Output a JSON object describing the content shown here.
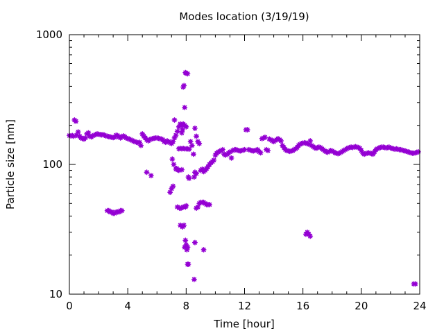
{
  "chart_data": {
    "type": "scatter",
    "title": "Modes location (3/19/19)",
    "xlabel": "Time [hour]",
    "ylabel": "Particle size [nm]",
    "xlim": [
      0,
      24
    ],
    "ylim": [
      10,
      1000
    ],
    "y_scale": "log",
    "x_ticks": [
      0,
      4,
      8,
      12,
      16,
      20,
      24
    ],
    "x_tick_labels": [
      "0",
      "4",
      "8",
      "12",
      "16",
      "20",
      "24"
    ],
    "y_ticks": [
      10,
      100,
      1000
    ],
    "y_tick_labels": [
      "10",
      "100",
      "1000"
    ],
    "grid": false,
    "legend": "none",
    "marker_color": "#9400d3",
    "series": [
      {
        "points": [
          [
            0.0,
            167
          ],
          [
            0.1,
            166
          ],
          [
            0.2,
            167
          ],
          [
            0.3,
            165
          ],
          [
            0.35,
            220
          ],
          [
            0.45,
            215
          ],
          [
            0.5,
            168
          ],
          [
            0.6,
            178
          ],
          [
            0.7,
            165
          ],
          [
            0.8,
            160
          ],
          [
            0.9,
            158
          ],
          [
            1.0,
            157
          ],
          [
            1.1,
            160
          ],
          [
            1.2,
            172
          ],
          [
            1.3,
            175
          ],
          [
            1.4,
            165
          ],
          [
            1.5,
            163
          ],
          [
            1.6,
            166
          ],
          [
            1.7,
            168
          ],
          [
            1.8,
            170
          ],
          [
            1.9,
            172
          ],
          [
            2.0,
            171
          ],
          [
            2.1,
            170
          ],
          [
            2.2,
            169
          ],
          [
            2.3,
            170
          ],
          [
            2.4,
            168
          ],
          [
            2.5,
            166
          ],
          [
            2.6,
            165
          ],
          [
            2.7,
            164
          ],
          [
            2.8,
            163
          ],
          [
            2.9,
            162
          ],
          [
            3.0,
            161
          ],
          [
            3.1,
            162
          ],
          [
            3.2,
            168
          ],
          [
            3.3,
            167
          ],
          [
            3.4,
            163
          ],
          [
            3.5,
            160
          ],
          [
            3.6,
            164
          ],
          [
            3.7,
            166
          ],
          [
            3.8,
            163
          ],
          [
            3.9,
            160
          ],
          [
            4.0,
            158
          ],
          [
            4.1,
            157
          ],
          [
            4.2,
            155
          ],
          [
            4.3,
            153
          ],
          [
            4.4,
            151
          ],
          [
            4.5,
            150
          ],
          [
            4.6,
            148
          ],
          [
            4.7,
            147
          ],
          [
            4.8,
            148
          ],
          [
            4.9,
            140
          ],
          [
            5.0,
            172
          ],
          [
            5.1,
            165
          ],
          [
            5.2,
            160
          ],
          [
            5.3,
            155
          ],
          [
            5.4,
            152
          ],
          [
            5.5,
            155
          ],
          [
            5.6,
            157
          ],
          [
            5.7,
            158
          ],
          [
            5.8,
            159
          ],
          [
            5.9,
            160
          ],
          [
            6.0,
            160
          ],
          [
            6.1,
            159
          ],
          [
            6.2,
            158
          ],
          [
            6.3,
            157
          ],
          [
            6.4,
            155
          ],
          [
            6.5,
            150
          ],
          [
            6.6,
            148
          ],
          [
            6.7,
            152
          ],
          [
            6.8,
            150
          ],
          [
            6.9,
            147
          ],
          [
            7.0,
            145
          ],
          [
            7.1,
            150
          ],
          [
            7.2,
            160
          ],
          [
            7.3,
            168
          ],
          [
            7.4,
            180
          ],
          [
            7.5,
            195
          ],
          [
            7.6,
            205
          ],
          [
            7.7,
            200
          ],
          [
            7.8,
            205
          ],
          [
            7.9,
            200
          ],
          [
            8.0,
            195
          ],
          [
            8.3,
            150
          ],
          [
            8.4,
            140
          ],
          [
            8.5,
            120
          ],
          [
            8.6,
            190
          ],
          [
            8.7,
            165
          ],
          [
            8.8,
            150
          ],
          [
            8.9,
            145
          ],
          [
            9.0,
            90
          ],
          [
            9.1,
            92
          ],
          [
            9.2,
            88
          ],
          [
            9.3,
            90
          ],
          [
            9.4,
            93
          ],
          [
            9.5,
            96
          ],
          [
            9.6,
            100
          ],
          [
            9.7,
            103
          ],
          [
            9.8,
            105
          ],
          [
            9.9,
            108
          ],
          [
            10.0,
            118
          ],
          [
            10.1,
            122
          ],
          [
            10.2,
            125
          ],
          [
            10.3,
            126
          ],
          [
            10.4,
            128
          ],
          [
            10.5,
            130
          ],
          [
            10.6,
            120
          ],
          [
            10.7,
            118
          ],
          [
            10.8,
            120
          ],
          [
            10.9,
            122
          ],
          [
            11.0,
            125
          ],
          [
            11.1,
            112
          ],
          [
            11.2,
            128
          ],
          [
            11.3,
            130
          ],
          [
            11.4,
            130
          ],
          [
            11.5,
            129
          ],
          [
            11.6,
            128
          ],
          [
            11.7,
            127
          ],
          [
            11.8,
            128
          ],
          [
            11.9,
            129
          ],
          [
            12.0,
            130
          ],
          [
            12.1,
            185
          ],
          [
            12.2,
            185
          ],
          [
            12.3,
            130
          ],
          [
            12.4,
            129
          ],
          [
            12.5,
            128
          ],
          [
            12.6,
            127
          ],
          [
            12.7,
            128
          ],
          [
            12.8,
            129
          ],
          [
            12.9,
            130
          ],
          [
            13.0,
            125
          ],
          [
            13.1,
            123
          ],
          [
            13.2,
            158
          ],
          [
            13.3,
            160
          ],
          [
            13.4,
            162
          ],
          [
            13.5,
            130
          ],
          [
            13.6,
            128
          ],
          [
            13.7,
            157
          ],
          [
            13.8,
            155
          ],
          [
            13.9,
            152
          ],
          [
            14.0,
            150
          ],
          [
            14.1,
            153
          ],
          [
            14.2,
            155
          ],
          [
            14.3,
            158
          ],
          [
            14.4,
            155
          ],
          [
            14.5,
            152
          ],
          [
            14.6,
            140
          ],
          [
            14.7,
            135
          ],
          [
            14.8,
            130
          ],
          [
            14.9,
            128
          ],
          [
            15.0,
            127
          ],
          [
            15.1,
            126
          ],
          [
            15.2,
            127
          ],
          [
            15.3,
            128
          ],
          [
            15.4,
            130
          ],
          [
            15.5,
            132
          ],
          [
            15.6,
            135
          ],
          [
            15.7,
            140
          ],
          [
            15.8,
            143
          ],
          [
            15.9,
            145
          ],
          [
            16.0,
            146
          ],
          [
            16.1,
            147
          ],
          [
            16.2,
            146
          ],
          [
            16.3,
            145
          ],
          [
            16.4,
            143
          ],
          [
            16.5,
            152
          ],
          [
            16.6,
            140
          ],
          [
            16.7,
            137
          ],
          [
            16.8,
            135
          ],
          [
            16.9,
            133
          ],
          [
            17.0,
            135
          ],
          [
            17.1,
            136
          ],
          [
            17.2,
            135
          ],
          [
            17.3,
            132
          ],
          [
            17.4,
            130
          ],
          [
            17.5,
            127
          ],
          [
            17.6,
            125
          ],
          [
            17.7,
            124
          ],
          [
            17.8,
            126
          ],
          [
            17.9,
            128
          ],
          [
            18.0,
            127
          ],
          [
            18.1,
            125
          ],
          [
            18.2,
            123
          ],
          [
            18.3,
            122
          ],
          [
            18.4,
            121
          ],
          [
            18.5,
            122
          ],
          [
            18.6,
            124
          ],
          [
            18.7,
            126
          ],
          [
            18.8,
            128
          ],
          [
            18.9,
            130
          ],
          [
            19.0,
            132
          ],
          [
            19.1,
            134
          ],
          [
            19.2,
            135
          ],
          [
            19.3,
            136
          ],
          [
            19.4,
            135
          ],
          [
            19.5,
            136
          ],
          [
            19.6,
            137
          ],
          [
            19.7,
            136
          ],
          [
            19.8,
            135
          ],
          [
            19.9,
            133
          ],
          [
            20.0,
            128
          ],
          [
            20.1,
            122
          ],
          [
            20.2,
            120
          ],
          [
            20.3,
            121
          ],
          [
            20.4,
            122
          ],
          [
            20.5,
            123
          ],
          [
            20.6,
            122
          ],
          [
            20.7,
            121
          ],
          [
            20.8,
            120
          ],
          [
            20.9,
            125
          ],
          [
            21.0,
            130
          ],
          [
            21.1,
            132
          ],
          [
            21.2,
            134
          ],
          [
            21.3,
            135
          ],
          [
            21.4,
            136
          ],
          [
            21.5,
            136
          ],
          [
            21.6,
            135
          ],
          [
            21.7,
            134
          ],
          [
            21.8,
            135
          ],
          [
            21.9,
            136
          ],
          [
            22.0,
            134
          ],
          [
            22.1,
            133
          ],
          [
            22.2,
            132
          ],
          [
            22.3,
            131
          ],
          [
            22.4,
            132
          ],
          [
            22.5,
            131
          ],
          [
            22.6,
            130
          ],
          [
            22.7,
            130
          ],
          [
            22.8,
            129
          ],
          [
            22.9,
            128
          ],
          [
            23.0,
            127
          ],
          [
            23.1,
            126
          ],
          [
            23.2,
            125
          ],
          [
            23.3,
            124
          ],
          [
            23.4,
            123
          ],
          [
            23.5,
            122
          ],
          [
            23.6,
            122
          ],
          [
            23.7,
            123
          ],
          [
            23.8,
            124
          ],
          [
            23.9,
            125
          ],
          [
            2.6,
            44
          ],
          [
            2.7,
            44
          ],
          [
            2.8,
            43
          ],
          [
            2.9,
            43
          ],
          [
            3.0,
            42
          ],
          [
            3.1,
            42
          ],
          [
            3.2,
            43
          ],
          [
            3.3,
            43
          ],
          [
            3.4,
            43
          ],
          [
            3.5,
            44
          ],
          [
            3.6,
            44
          ],
          [
            5.3,
            87
          ],
          [
            5.6,
            82
          ],
          [
            6.9,
            61
          ],
          [
            7.0,
            65
          ],
          [
            7.05,
            110
          ],
          [
            7.1,
            68
          ],
          [
            7.15,
            100
          ],
          [
            7.2,
            220
          ],
          [
            7.3,
            92
          ],
          [
            7.35,
            93
          ],
          [
            7.4,
            47
          ],
          [
            7.45,
            91
          ],
          [
            7.5,
            90
          ],
          [
            7.55,
            46
          ],
          [
            7.6,
            34
          ],
          [
            7.65,
            46
          ],
          [
            7.7,
            91
          ],
          [
            7.75,
            33
          ],
          [
            7.8,
            47
          ],
          [
            7.85,
            34
          ],
          [
            7.9,
            23
          ],
          [
            7.95,
            47
          ],
          [
            8.0,
            48
          ],
          [
            8.1,
            23
          ],
          [
            8.15,
            80
          ],
          [
            8.2,
            78
          ],
          [
            7.5,
            132
          ],
          [
            7.6,
            133
          ],
          [
            7.7,
            132
          ],
          [
            7.8,
            133
          ],
          [
            7.9,
            132
          ],
          [
            8.0,
            132
          ],
          [
            8.1,
            132
          ],
          [
            8.2,
            131
          ],
          [
            7.7,
            175
          ],
          [
            7.75,
            185
          ],
          [
            7.8,
            395
          ],
          [
            7.85,
            405
          ],
          [
            7.9,
            275
          ],
          [
            7.95,
            510
          ],
          [
            8.0,
            505
          ],
          [
            8.1,
            500
          ],
          [
            7.95,
            26
          ],
          [
            8.0,
            24
          ],
          [
            8.05,
            22
          ],
          [
            8.1,
            17
          ],
          [
            8.15,
            17
          ],
          [
            8.55,
            13
          ],
          [
            8.6,
            25
          ],
          [
            8.7,
            46
          ],
          [
            8.8,
            47
          ],
          [
            8.9,
            50
          ],
          [
            9.0,
            51
          ],
          [
            9.1,
            51
          ],
          [
            9.2,
            51
          ],
          [
            9.3,
            50
          ],
          [
            9.4,
            49
          ],
          [
            9.5,
            49
          ],
          [
            9.6,
            49
          ],
          [
            8.55,
            80
          ],
          [
            8.6,
            87
          ],
          [
            8.7,
            85
          ],
          [
            9.2,
            22
          ],
          [
            16.2,
            29
          ],
          [
            16.3,
            30
          ],
          [
            16.4,
            29
          ],
          [
            16.5,
            28
          ],
          [
            23.6,
            12
          ],
          [
            23.7,
            12
          ]
        ]
      }
    ]
  }
}
